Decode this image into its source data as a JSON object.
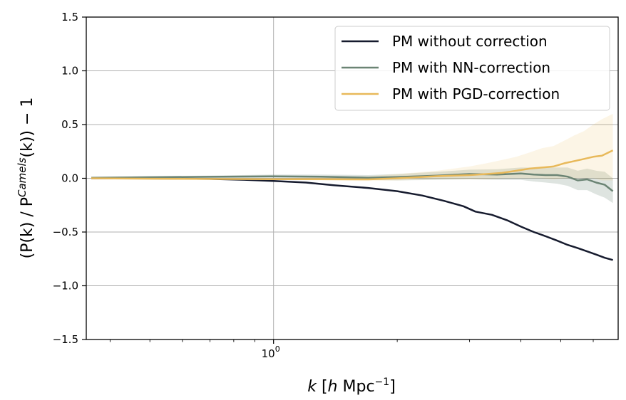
{
  "chart_data": {
    "type": "line",
    "xscale": "log",
    "xlim": [
      0.35,
      6.9
    ],
    "ylim": [
      -1.5,
      1.5
    ],
    "x_ticks": [
      {
        "value": 1.0,
        "label": "10",
        "exp": "0"
      }
    ],
    "y_ticks": [
      {
        "value": 1.5,
        "label": "1.5"
      },
      {
        "value": 1.0,
        "label": "1.0"
      },
      {
        "value": 0.5,
        "label": "0.5"
      },
      {
        "value": 0.0,
        "label": "0.0"
      },
      {
        "value": -0.5,
        "label": "−0.5"
      },
      {
        "value": -1.0,
        "label": "−1.0"
      },
      {
        "value": -1.5,
        "label": "−1.5"
      }
    ],
    "grid": true,
    "legend_position": "top-right",
    "xlabel": {
      "k": "k",
      "bracket_open": " [",
      "h": "h",
      "unit": " Mpc",
      "exp": "−1",
      "bracket_close": "]"
    },
    "ylabel": {
      "part1": "(P(k) / P",
      "sup": "Camels",
      "part2": "(k)) − 1"
    },
    "series": [
      {
        "name": "PM without correction",
        "color": "#161b2e",
        "x": [
          0.36,
          0.5,
          0.7,
          0.85,
          1.0,
          1.2,
          1.4,
          1.7,
          2.0,
          2.3,
          2.6,
          2.9,
          3.1,
          3.4,
          3.7,
          4.0,
          4.3,
          4.6,
          4.9,
          5.2,
          5.5,
          5.8,
          6.1,
          6.4,
          6.7
        ],
        "y": [
          0.0,
          -0.002,
          -0.006,
          -0.014,
          -0.025,
          -0.04,
          -0.065,
          -0.09,
          -0.12,
          -0.16,
          -0.21,
          -0.26,
          -0.31,
          -0.34,
          -0.39,
          -0.45,
          -0.5,
          -0.54,
          -0.58,
          -0.62,
          -0.65,
          -0.68,
          -0.71,
          -0.74,
          -0.76
        ]
      },
      {
        "name": "PM with NN-correction",
        "color": "#6b8474",
        "x": [
          0.36,
          0.5,
          0.7,
          1.0,
          1.3,
          1.7,
          2.0,
          2.5,
          3.0,
          3.5,
          4.0,
          4.3,
          4.6,
          4.9,
          5.2,
          5.5,
          5.8,
          6.1,
          6.4,
          6.7
        ],
        "y": [
          0.005,
          0.01,
          0.014,
          0.018,
          0.015,
          0.005,
          0.012,
          0.025,
          0.04,
          0.035,
          0.045,
          0.035,
          0.03,
          0.03,
          0.015,
          -0.02,
          -0.01,
          -0.04,
          -0.06,
          -0.12
        ],
        "band_lower": [
          0.0,
          0.0,
          0.0,
          0.0,
          0.0,
          -0.015,
          -0.02,
          -0.015,
          -0.01,
          -0.015,
          -0.015,
          -0.03,
          -0.04,
          -0.05,
          -0.07,
          -0.11,
          -0.11,
          -0.15,
          -0.18,
          -0.23
        ],
        "band_upper": [
          0.01,
          0.02,
          0.025,
          0.035,
          0.035,
          0.03,
          0.04,
          0.06,
          0.08,
          0.085,
          0.1,
          0.1,
          0.1,
          0.1,
          0.1,
          0.07,
          0.09,
          0.07,
          0.06,
          0.0
        ]
      },
      {
        "name": "PM with PGD-correction",
        "color": "#e8b95a",
        "x": [
          0.36,
          0.5,
          0.7,
          1.0,
          1.3,
          1.7,
          2.0,
          2.5,
          3.0,
          3.3,
          3.6,
          3.9,
          4.2,
          4.5,
          4.8,
          5.1,
          5.4,
          5.7,
          6.0,
          6.3,
          6.7
        ],
        "y": [
          0.0,
          -0.004,
          -0.006,
          -0.008,
          -0.008,
          -0.01,
          0.0,
          0.02,
          0.03,
          0.04,
          0.05,
          0.07,
          0.09,
          0.1,
          0.11,
          0.14,
          0.16,
          0.18,
          0.2,
          0.21,
          0.26
        ],
        "band_lower": [
          0.0,
          -0.006,
          -0.01,
          -0.015,
          -0.02,
          -0.025,
          -0.02,
          -0.01,
          -0.01,
          -0.01,
          0.0,
          0.0,
          0.0,
          0.0,
          -0.01,
          0.0,
          0.0,
          0.0,
          0.0,
          -0.02,
          -0.02
        ],
        "band_upper": [
          0.0,
          0.0,
          0.0,
          0.0,
          0.01,
          0.02,
          0.04,
          0.07,
          0.11,
          0.14,
          0.17,
          0.2,
          0.24,
          0.28,
          0.3,
          0.35,
          0.4,
          0.44,
          0.5,
          0.55,
          0.6
        ]
      }
    ]
  }
}
